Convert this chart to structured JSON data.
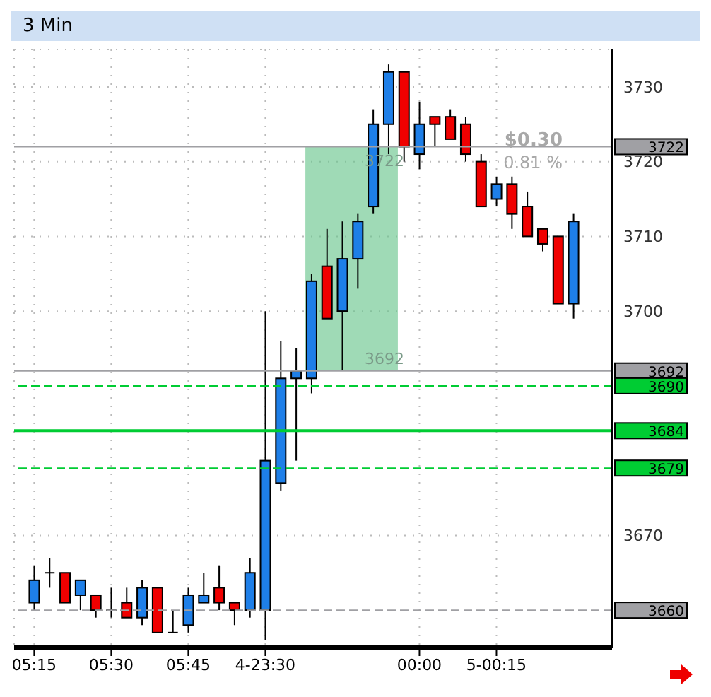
{
  "chart_data": {
    "type": "candlestick",
    "title": "3 Min",
    "categories": [
      "05:15",
      null,
      null,
      null,
      null,
      "05:30",
      null,
      null,
      null,
      null,
      "05:45",
      null,
      null,
      null,
      null,
      "4-23:30",
      null,
      null,
      null,
      null,
      null,
      null,
      null,
      null,
      null,
      "00:00",
      null,
      null,
      null,
      null,
      "5-00:15",
      null,
      null,
      null,
      null,
      null
    ],
    "ohlc": [
      [
        3661,
        3666,
        3660,
        3664
      ],
      [
        3665,
        3667,
        3663,
        3665
      ],
      [
        3665,
        3665,
        3661,
        3661
      ],
      [
        3662,
        3664,
        3660,
        3664
      ],
      [
        3662,
        3662,
        3659,
        3660
      ],
      [
        3660,
        3663,
        3659,
        3660
      ],
      [
        3661,
        3663,
        3659,
        3659
      ],
      [
        3659,
        3664,
        3658,
        3663
      ],
      [
        3663,
        3663,
        3657,
        3657
      ],
      [
        3657,
        3660,
        3657,
        3657
      ],
      [
        3658,
        3663,
        3657,
        3662
      ],
      [
        3661,
        3665,
        3661,
        3662
      ],
      [
        3663,
        3666,
        3660,
        3661
      ],
      [
        3661,
        3661,
        3658,
        3660
      ],
      [
        3660,
        3667,
        3659,
        3665
      ],
      [
        3660,
        3700,
        3656,
        3680
      ],
      [
        3677,
        3696,
        3676,
        3691
      ],
      [
        3691,
        3695,
        3680,
        3692
      ],
      [
        3691,
        3705,
        3689,
        3704
      ],
      [
        3706,
        3711,
        3699,
        3699
      ],
      [
        3700,
        3712,
        3692,
        3707
      ],
      [
        3707,
        3713,
        3703,
        3712
      ],
      [
        3714,
        3727,
        3713,
        3725
      ],
      [
        3725,
        3733,
        3721,
        3732
      ],
      [
        3732,
        3732,
        3720,
        3722
      ],
      [
        3721,
        3728,
        3719,
        3725
      ],
      [
        3726,
        3726,
        3722,
        3725
      ],
      [
        3726,
        3727,
        3723,
        3723
      ],
      [
        3725,
        3726,
        3720,
        3721
      ],
      [
        3720,
        3721,
        3714,
        3714
      ],
      [
        3715,
        3718,
        3714,
        3717
      ],
      [
        3717,
        3718,
        3711,
        3713
      ],
      [
        3714,
        3716,
        3710,
        3710
      ],
      [
        3711,
        3711,
        3708,
        3709
      ],
      [
        3710,
        3710,
        3701,
        3701
      ],
      [
        3701,
        3713,
        3699,
        3712
      ]
    ],
    "colors": [
      "#1e7fe8",
      "#000000",
      "#f00000",
      "#1e7fe8",
      "#f00000",
      "#000000",
      "#f00000",
      "#1e7fe8",
      "#f00000",
      "#000000",
      "#1e7fe8",
      "#1e7fe8",
      "#f00000",
      "#f00000",
      "#1e7fe8",
      "#1e7fe8",
      "#1e7fe8",
      "#1e7fe8",
      "#1e7fe8",
      "#f00000",
      "#1e7fe8",
      "#1e7fe8",
      "#1e7fe8",
      "#1e7fe8",
      "#f00000",
      "#1e7fe8",
      "#f00000",
      "#f00000",
      "#f00000",
      "#f00000",
      "#1e7fe8",
      "#f00000",
      "#f00000",
      "#f00000",
      "#f00000",
      "#1e7fe8"
    ],
    "ylim": [
      3655,
      3735
    ],
    "yticks": [
      3670,
      3700,
      3710,
      3720,
      3730
    ],
    "grid": true,
    "ref_lines": [
      {
        "axis": "y",
        "value": 3722,
        "label": "3722",
        "color": "#a0a0a4",
        "line_style": "solid"
      },
      {
        "axis": "y",
        "value": 3692,
        "label": "3692",
        "color": "#a0a0a4",
        "line_style": "solid"
      },
      {
        "axis": "y",
        "value": 3690,
        "label": "3690",
        "color": "#00cc33",
        "line_style": "dashed"
      },
      {
        "axis": "y",
        "value": 3684,
        "label": "3684",
        "color": "#00cc33",
        "line_style": "solid"
      },
      {
        "axis": "y",
        "value": 3679,
        "label": "3679",
        "color": "#00cc33",
        "line_style": "dashed"
      },
      {
        "axis": "y",
        "value": 3660,
        "label": "3660",
        "color": "#a0a0a4",
        "line_style": "dashed"
      }
    ],
    "bands": [
      {
        "axis": "y",
        "from": 3692,
        "to": 3722,
        "color": "#6cc68f"
      }
    ],
    "annotations": [
      "$0.30",
      "0.81 %",
      {
        "text": "3722",
        "y": 3722
      },
      {
        "text": "3692",
        "y": 3692
      }
    ]
  }
}
